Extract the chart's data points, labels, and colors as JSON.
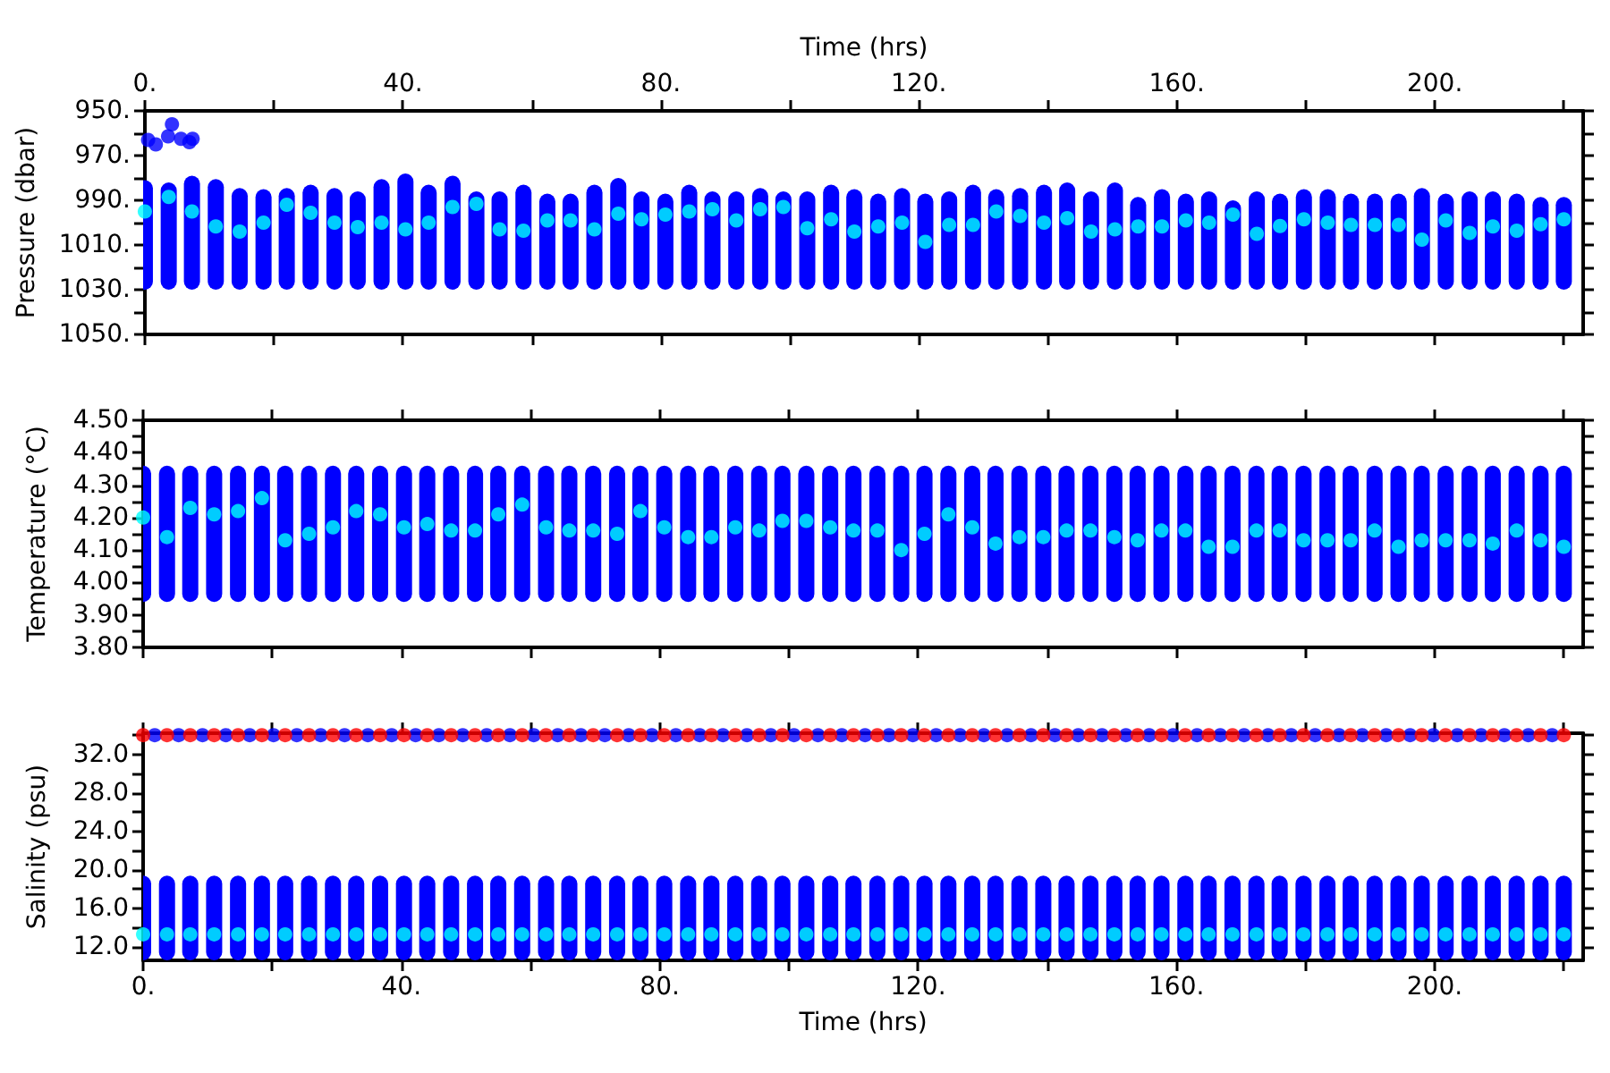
{
  "chart_data": [
    {
      "type": "scatter",
      "ylabel": "Pressure (dbar)",
      "x2label": "Time (hrs)",
      "marker": "circle",
      "tick_labels": "y",
      "x": [
        0,
        3.7,
        7.3,
        11,
        14.7,
        18.4,
        22,
        25.7,
        29.4,
        33,
        36.7,
        40.4,
        44,
        47.7,
        51.4,
        55,
        58.7,
        62.4,
        66,
        69.7,
        73.4,
        77,
        80.7,
        84.4,
        88,
        91.7,
        95.4,
        99,
        102.7,
        106.4,
        110,
        113.7,
        117.4,
        121,
        124.7,
        128.4,
        132,
        135.7,
        139.4,
        143,
        146.7,
        150.4,
        154,
        157.7,
        161.4,
        165,
        168.7,
        172.4,
        176,
        179.7,
        183.4,
        187,
        190.7,
        194.4,
        198,
        201.7,
        205.4,
        209,
        212.7,
        216.4,
        220
      ],
      "xlim": [
        0,
        223
      ],
      "xticks": [
        0,
        20,
        40,
        60,
        80,
        100,
        120,
        140,
        160,
        180,
        200,
        220
      ],
      "x2lim": [
        0,
        223
      ],
      "x2ticks": [
        {
          "value": 0,
          "label": "0."
        },
        {
          "value": 20,
          "label": null
        },
        {
          "value": 40,
          "label": "40."
        },
        {
          "value": 60,
          "label": null
        },
        {
          "value": 80,
          "label": "80."
        },
        {
          "value": 100,
          "label": null
        },
        {
          "value": 120,
          "label": "120."
        },
        {
          "value": 140,
          "label": null
        },
        {
          "value": 160,
          "label": "160."
        },
        {
          "value": 180,
          "label": null
        },
        {
          "value": 200,
          "label": "200."
        },
        {
          "value": 220,
          "label": null
        }
      ],
      "ylim": [
        1050,
        950
      ],
      "yticks": [
        {
          "value": 950,
          "label": "950."
        },
        {
          "value": 960,
          "label": null
        },
        {
          "value": 970,
          "label": "970."
        },
        {
          "value": 980,
          "label": null
        },
        {
          "value": 990,
          "label": "990."
        },
        {
          "value": 1000,
          "label": null
        },
        {
          "value": 1010,
          "label": "1010."
        },
        {
          "value": 1020,
          "label": null
        },
        {
          "value": 1030,
          "label": "1030."
        },
        {
          "value": 1040,
          "label": null
        },
        {
          "value": 1050,
          "label": "1050."
        }
      ],
      "series": [
        {
          "type": "bar",
          "color": "#0000ff",
          "base": [
            981,
            982,
            979,
            980.5,
            984.5,
            985,
            984.5,
            983,
            984.5,
            986,
            980.5,
            978,
            983,
            979,
            986,
            986,
            983,
            987,
            987,
            983,
            980,
            986,
            987,
            983,
            986,
            986,
            984.5,
            986,
            986,
            983,
            985,
            987,
            984.5,
            987,
            986,
            983,
            985,
            984.5,
            983,
            982,
            986,
            982,
            988.5,
            985,
            987,
            986,
            990,
            986,
            987,
            985,
            985,
            987,
            987,
            987,
            984.5,
            987,
            986,
            986,
            987,
            988.5,
            988.5
          ],
          "values": [
            49,
            48,
            51,
            49.5,
            45.5,
            45,
            45.5,
            47,
            45.5,
            44,
            49.5,
            52,
            47,
            51,
            44,
            44,
            47,
            43,
            43,
            47,
            50,
            44,
            43,
            47,
            44,
            44,
            45.5,
            44,
            44,
            47,
            45,
            43,
            45.5,
            43,
            44,
            47,
            45,
            45.5,
            47,
            48,
            44,
            48,
            41.5,
            45,
            43,
            44,
            40,
            44,
            43,
            45,
            45,
            43,
            43,
            43,
            45.5,
            43,
            44,
            44,
            43,
            41.5,
            41.5
          ]
        },
        {
          "color": "#0000ff",
          "x": [
            0.5,
            1.7,
            3.6,
            4.2,
            5.6,
            6.9,
            7.4
          ],
          "values": [
            963,
            965,
            961.4,
            956,
            962.5,
            964,
            962.5
          ]
        },
        {
          "color": "#00ffff",
          "values": [
            995,
            988.5,
            995,
            1001.7,
            1004,
            1000,
            992,
            995.6,
            1000,
            1002,
            1000,
            1003,
            1000,
            993,
            991.6,
            1003,
            1003.6,
            999,
            999,
            1003,
            996,
            998.5,
            996.4,
            995,
            994,
            999,
            994,
            993,
            1002.5,
            998.5,
            1004,
            1001.7,
            1000,
            1008.6,
            1001,
            1001,
            995,
            997,
            1000,
            998,
            1004,
            1003,
            1001.7,
            1001.7,
            999,
            1000,
            996.4,
            1005,
            1001.5,
            998.5,
            1000,
            1001,
            1001,
            1001,
            1007.6,
            999,
            1004.6,
            1001.7,
            1003.6,
            1000.7,
            998.5
          ]
        }
      ]
    },
    {
      "type": "scatter",
      "ylabel": "Temperature (°C)",
      "marker": "circle",
      "tick_labels": "y",
      "x": [
        0,
        3.7,
        7.3,
        11,
        14.7,
        18.4,
        22,
        25.7,
        29.4,
        33,
        36.7,
        40.4,
        44,
        47.7,
        51.4,
        55,
        58.7,
        62.4,
        66,
        69.7,
        73.4,
        77,
        80.7,
        84.4,
        88,
        91.7,
        95.4,
        99,
        102.7,
        106.4,
        110,
        113.7,
        117.4,
        121,
        124.7,
        128.4,
        132,
        135.7,
        139.4,
        143,
        146.7,
        150.4,
        154,
        157.7,
        161.4,
        165,
        168.7,
        172.4,
        176,
        179.7,
        183.4,
        187,
        190.7,
        194.4,
        198,
        201.7,
        205.4,
        209,
        212.7,
        216.4,
        220
      ],
      "xlim": [
        0,
        223
      ],
      "xticks": [
        0,
        20,
        40,
        60,
        80,
        100,
        120,
        140,
        160,
        180,
        200,
        220
      ],
      "ylim": [
        3.8,
        4.5
      ],
      "yticks": [
        {
          "value": 3.8,
          "label": "3.80"
        },
        {
          "value": 3.85,
          "label": null
        },
        {
          "value": 3.9,
          "label": "3.90"
        },
        {
          "value": 3.95,
          "label": null
        },
        {
          "value": 4.0,
          "label": "4.00"
        },
        {
          "value": 4.05,
          "label": null
        },
        {
          "value": 4.1,
          "label": "4.10"
        },
        {
          "value": 4.15,
          "label": null
        },
        {
          "value": 4.2,
          "label": "4.20"
        },
        {
          "value": 4.25,
          "label": null
        },
        {
          "value": 4.3,
          "label": "4.30"
        },
        {
          "value": 4.35,
          "label": null
        },
        {
          "value": 4.4,
          "label": "4.40"
        },
        {
          "value": 4.45,
          "label": null
        },
        {
          "value": 4.5,
          "label": "4.50"
        }
      ],
      "series": [
        {
          "type": "bar",
          "color": "#0000ff",
          "base": [
            3.94,
            3.94,
            3.94,
            3.94,
            3.94,
            3.94,
            3.94,
            3.94,
            3.94,
            3.94,
            3.94,
            3.94,
            3.94,
            3.94,
            3.94,
            3.94,
            3.94,
            3.94,
            3.94,
            3.94,
            3.94,
            3.94,
            3.94,
            3.94,
            3.94,
            3.94,
            3.94,
            3.94,
            3.94,
            3.94,
            3.94,
            3.94,
            3.94,
            3.94,
            3.94,
            3.94,
            3.94,
            3.94,
            3.94,
            3.94,
            3.94,
            3.94,
            3.94,
            3.94,
            3.94,
            3.94,
            3.94,
            3.94,
            3.94,
            3.94,
            3.94,
            3.94,
            3.94,
            3.94,
            3.94,
            3.94,
            3.94,
            3.94,
            3.94,
            3.94,
            3.94
          ],
          "values": [
            0.42,
            0.42,
            0.42,
            0.42,
            0.42,
            0.42,
            0.42,
            0.42,
            0.42,
            0.42,
            0.42,
            0.42,
            0.42,
            0.42,
            0.42,
            0.42,
            0.42,
            0.42,
            0.42,
            0.42,
            0.42,
            0.42,
            0.42,
            0.42,
            0.42,
            0.42,
            0.42,
            0.42,
            0.42,
            0.42,
            0.42,
            0.42,
            0.42,
            0.42,
            0.42,
            0.42,
            0.42,
            0.42,
            0.42,
            0.42,
            0.42,
            0.42,
            0.42,
            0.42,
            0.42,
            0.42,
            0.42,
            0.42,
            0.42,
            0.42,
            0.42,
            0.42,
            0.42,
            0.42,
            0.42,
            0.42,
            0.42,
            0.42,
            0.42,
            0.42,
            0.42
          ]
        },
        {
          "color": "#00ffff",
          "values": [
            4.2,
            4.14,
            4.23,
            4.21,
            4.22,
            4.26,
            4.13,
            4.15,
            4.17,
            4.22,
            4.21,
            4.17,
            4.18,
            4.16,
            4.16,
            4.21,
            4.24,
            4.17,
            4.16,
            4.16,
            4.15,
            4.22,
            4.17,
            4.14,
            4.14,
            4.17,
            4.16,
            4.19,
            4.19,
            4.17,
            4.16,
            4.16,
            4.1,
            4.15,
            4.21,
            4.17,
            4.12,
            4.14,
            4.14,
            4.16,
            4.16,
            4.14,
            4.13,
            4.16,
            4.16,
            4.11,
            4.11,
            4.16,
            4.16,
            4.13,
            4.13,
            4.13,
            4.16,
            4.11,
            4.13,
            4.13,
            4.13,
            4.12,
            4.16,
            4.13,
            4.11
          ]
        }
      ]
    },
    {
      "type": "scatter",
      "ylabel": "Salinity (psu)",
      "xlabel": "Time (hrs)",
      "marker": "circle",
      "x": [
        0,
        3.7,
        7.3,
        11,
        14.7,
        18.4,
        22,
        25.7,
        29.4,
        33,
        36.7,
        40.4,
        44,
        47.7,
        51.4,
        55,
        58.7,
        62.4,
        66,
        69.7,
        73.4,
        77,
        80.7,
        84.4,
        88,
        91.7,
        95.4,
        99,
        102.7,
        106.4,
        110,
        113.7,
        117.4,
        121,
        124.7,
        128.4,
        132,
        135.7,
        139.4,
        143,
        146.7,
        150.4,
        154,
        157.7,
        161.4,
        165,
        168.7,
        172.4,
        176,
        179.7,
        183.4,
        187,
        190.7,
        194.4,
        198,
        201.7,
        205.4,
        209,
        212.7,
        216.4,
        220
      ],
      "xlim": [
        0,
        223
      ],
      "xticks": [
        {
          "value": 0,
          "label": "0."
        },
        {
          "value": 20,
          "label": null
        },
        {
          "value": 40,
          "label": "40."
        },
        {
          "value": 60,
          "label": null
        },
        {
          "value": 80,
          "label": "80."
        },
        {
          "value": 100,
          "label": null
        },
        {
          "value": 120,
          "label": "120."
        },
        {
          "value": 140,
          "label": null
        },
        {
          "value": 160,
          "label": "160."
        },
        {
          "value": 180,
          "label": null
        },
        {
          "value": 200,
          "label": "200."
        },
        {
          "value": 220,
          "label": null
        }
      ],
      "ylim": [
        10.6,
        34.2
      ],
      "yticks": [
        {
          "value": 12,
          "label": "12.0"
        },
        {
          "value": 14,
          "label": null
        },
        {
          "value": 16,
          "label": "16.0"
        },
        {
          "value": 18,
          "label": null
        },
        {
          "value": 20,
          "label": "20.0"
        },
        {
          "value": 22,
          "label": null
        },
        {
          "value": 24,
          "label": "24.0"
        },
        {
          "value": 26,
          "label": null
        },
        {
          "value": 28,
          "label": "28.0"
        },
        {
          "value": 30,
          "label": null
        },
        {
          "value": 32,
          "label": "32.0"
        },
        {
          "value": 34,
          "label": null
        }
      ],
      "series": [
        {
          "type": "bar",
          "color": "#0000ff",
          "base": [
            10.6,
            10.6,
            10.6,
            10.6,
            10.6,
            10.6,
            10.6,
            10.6,
            10.6,
            10.6,
            10.6,
            10.6,
            10.6,
            10.6,
            10.6,
            10.6,
            10.6,
            10.6,
            10.6,
            10.6,
            10.6,
            10.6,
            10.6,
            10.6,
            10.6,
            10.6,
            10.6,
            10.6,
            10.6,
            10.6,
            10.6,
            10.6,
            10.6,
            10.6,
            10.6,
            10.6,
            10.6,
            10.6,
            10.6,
            10.6,
            10.6,
            10.6,
            10.6,
            10.6,
            10.6,
            10.6,
            10.6,
            10.6,
            10.6,
            10.6,
            10.6,
            10.6,
            10.6,
            10.6,
            10.6,
            10.6,
            10.6,
            10.6,
            10.6,
            10.6,
            10.6
          ],
          "values": [
            8.8,
            8.8,
            8.8,
            8.8,
            8.8,
            8.8,
            8.8,
            8.8,
            8.8,
            8.8,
            8.8,
            8.8,
            8.8,
            8.8,
            8.8,
            8.8,
            8.8,
            8.8,
            8.8,
            8.8,
            8.8,
            8.8,
            8.8,
            8.8,
            8.8,
            8.8,
            8.8,
            8.8,
            8.8,
            8.8,
            8.8,
            8.8,
            8.8,
            8.8,
            8.8,
            8.8,
            8.8,
            8.8,
            8.8,
            8.8,
            8.8,
            8.8,
            8.8,
            8.8,
            8.8,
            8.8,
            8.8,
            8.8,
            8.8,
            8.8,
            8.8,
            8.8,
            8.8,
            8.8,
            8.8,
            8.8,
            8.8,
            8.8,
            8.8,
            8.8,
            8.8
          ]
        },
        {
          "color": "#00ffff",
          "values": [
            13.3,
            13.3,
            13.3,
            13.3,
            13.3,
            13.3,
            13.3,
            13.3,
            13.3,
            13.3,
            13.3,
            13.3,
            13.3,
            13.3,
            13.3,
            13.3,
            13.3,
            13.3,
            13.3,
            13.3,
            13.3,
            13.3,
            13.3,
            13.3,
            13.3,
            13.3,
            13.3,
            13.3,
            13.3,
            13.3,
            13.3,
            13.3,
            13.3,
            13.3,
            13.3,
            13.3,
            13.3,
            13.3,
            13.3,
            13.3,
            13.3,
            13.3,
            13.3,
            13.3,
            13.3,
            13.3,
            13.3,
            13.3,
            13.3,
            13.3,
            13.3,
            13.3,
            13.3,
            13.3,
            13.3,
            13.3,
            13.3,
            13.3,
            13.3,
            13.3,
            13.3
          ]
        },
        {
          "color": "#0000ff",
          "x": [
            1.8,
            5.5,
            9.2,
            12.8,
            16.5,
            20.2,
            23.8,
            27.5,
            31.2,
            34.8,
            38.5,
            42.2,
            45.8,
            49.5,
            53.2,
            56.8,
            60.5,
            64.2,
            67.8,
            71.5,
            75.2,
            78.8,
            82.5,
            86.2,
            89.8,
            93.5,
            97.2,
            100.8,
            104.5,
            108.2,
            111.8,
            115.5,
            119.2,
            122.8,
            126.5,
            130.2,
            133.8,
            137.5,
            141.2,
            144.8,
            148.5,
            152.2,
            155.8,
            159.5,
            163.2,
            166.8,
            170.5,
            174.2,
            177.8,
            181.5,
            185.2,
            188.8,
            192.5,
            196.2,
            199.8,
            203.5,
            207.2,
            210.8,
            214.5,
            218.2
          ],
          "values": [
            34,
            34,
            34,
            34,
            34,
            34,
            34,
            34,
            34,
            34,
            34,
            34,
            34,
            34,
            34,
            34,
            34,
            34,
            34,
            34,
            34,
            34,
            34,
            34,
            34,
            34,
            34,
            34,
            34,
            34,
            34,
            34,
            34,
            34,
            34,
            34,
            34,
            34,
            34,
            34,
            34,
            34,
            34,
            34,
            34,
            34,
            34,
            34,
            34,
            34,
            34,
            34,
            34,
            34,
            34,
            34,
            34,
            34,
            34,
            34
          ]
        },
        {
          "color": "#ff0000",
          "values": [
            34,
            34,
            34,
            34,
            34,
            34,
            34,
            34,
            34,
            34,
            34,
            34,
            34,
            34,
            34,
            34,
            34,
            34,
            34,
            34,
            34,
            34,
            34,
            34,
            34,
            34,
            34,
            34,
            34,
            34,
            34,
            34,
            34,
            34,
            34,
            34,
            34,
            34,
            34,
            34,
            34,
            34,
            34,
            34,
            34,
            34,
            34,
            34,
            34,
            34,
            34,
            34,
            34,
            34,
            34,
            34,
            34,
            34,
            34,
            34,
            34
          ]
        }
      ]
    }
  ]
}
